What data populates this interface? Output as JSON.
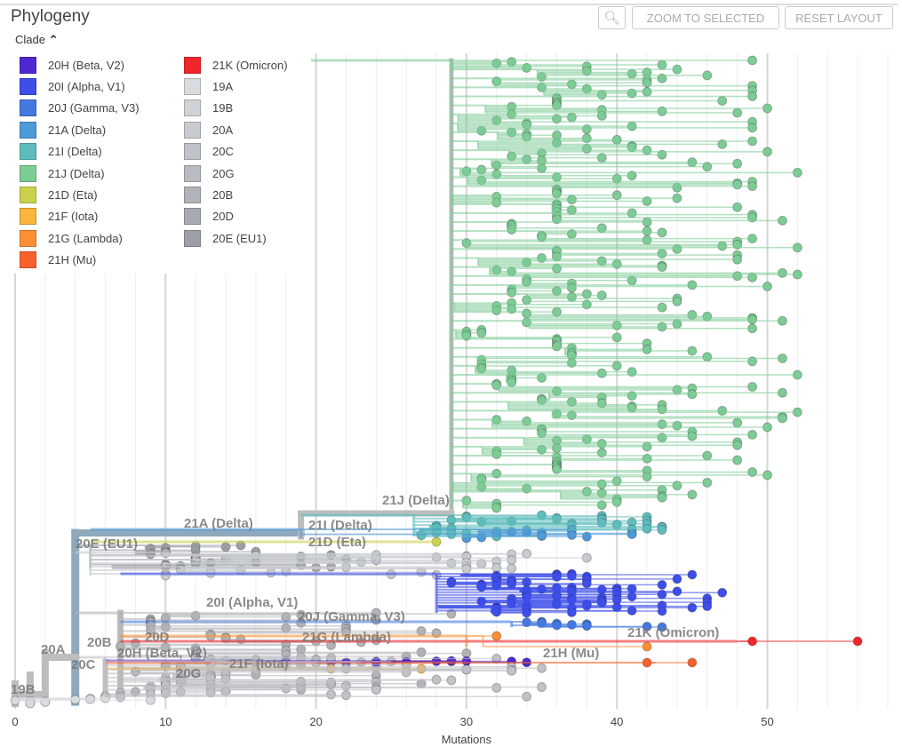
{
  "header": {
    "title": "Phylogeny",
    "zoom_icon": "magnifier-icon",
    "zoom_to_selected": "ZOOM TO SELECTED",
    "reset_layout": "RESET LAYOUT"
  },
  "legend": {
    "title": "Clade",
    "toggle_icon": "chevron-up-icon",
    "items": [
      {
        "label": "20H (Beta, V2)",
        "color": "#4f27d1"
      },
      {
        "label": "20I (Alpha, V1)",
        "color": "#3e4ee8"
      },
      {
        "label": "20J (Gamma, V3)",
        "color": "#4479e0"
      },
      {
        "label": "21A (Delta)",
        "color": "#4e9ad8"
      },
      {
        "label": "21I (Delta)",
        "color": "#5ebcbc"
      },
      {
        "label": "21J (Delta)",
        "color": "#7dcc96"
      },
      {
        "label": "21D (Eta)",
        "color": "#ccd14b"
      },
      {
        "label": "21F (Iota)",
        "color": "#fbb63e"
      },
      {
        "label": "21G (Lambda)",
        "color": "#fb8f34"
      },
      {
        "label": "21H (Mu)",
        "color": "#f9612c"
      },
      {
        "label": "21K (Omicron)",
        "color": "#f0262a"
      },
      {
        "label": "19A",
        "color": "#d8dcdf"
      },
      {
        "label": "19B",
        "color": "#cfd3d6"
      },
      {
        "label": "20A",
        "color": "#c7cbcf"
      },
      {
        "label": "20C",
        "color": "#bfc2c7"
      },
      {
        "label": "20G",
        "color": "#b8bbc0"
      },
      {
        "label": "20B",
        "color": "#b0b3b8"
      },
      {
        "label": "20D",
        "color": "#a7aab0"
      },
      {
        "label": "20E (EU1)",
        "color": "#9c9fa6"
      }
    ]
  },
  "tree": {
    "axis_label": "Mutations",
    "ticks": [
      0,
      10,
      20,
      30,
      40,
      50
    ],
    "xlim": [
      0,
      58
    ],
    "clade_labels": [
      "21J (Delta)",
      "21A (Delta)",
      "21I (Delta)",
      "21D (Eta)",
      "20E (EU1)",
      "20I (Alpha, V1)",
      "20J (Gamma, V3)",
      "20D",
      "20B",
      "21G (Lambda)",
      "21K (Omicron)",
      "20A",
      "20H (Beta, V2)",
      "20G",
      "21F (Iota)",
      "21H (Mu)",
      "20C",
      "19B"
    ],
    "clades": [
      {
        "name": "21J (Delta)",
        "color": "#7dcc96",
        "stem": [
          19,
          29
        ],
        "tips": [
          30,
          52
        ],
        "n": 300
      },
      {
        "name": "21I (Delta)",
        "color": "#5ebcbc",
        "stem": [
          19,
          26.5
        ],
        "tips": [
          27,
          44
        ],
        "n": 40
      },
      {
        "name": "21A (Delta)",
        "color": "#4e9ad8",
        "stem": [
          5,
          19
        ],
        "tips": [
          30,
          42
        ],
        "n": 12
      },
      {
        "name": "21D (Eta)",
        "color": "#ccd14b",
        "stem": [
          5,
          28
        ],
        "tips": [
          28,
          28
        ],
        "n": 1
      },
      {
        "name": "20E (EU1)",
        "color": "#9c9fa6",
        "stem": [
          4,
          5
        ],
        "tips": [
          9,
          24
        ],
        "n": 30
      },
      {
        "name": "20A",
        "color": "#c7cbcf",
        "stem": [
          4,
          5
        ],
        "tips": [
          5,
          40
        ],
        "n": 40
      },
      {
        "name": "20I (Alpha, V1)",
        "color": "#3e4ee8",
        "stem": [
          7,
          28
        ],
        "tips": [
          29,
          47
        ],
        "n": 90
      },
      {
        "name": "20J (Gamma, V3)",
        "color": "#4479e0",
        "stem": [
          7,
          33
        ],
        "tips": [
          33,
          44
        ],
        "n": 10
      },
      {
        "name": "20B",
        "color": "#b0b3b8",
        "stem": [
          4,
          7
        ],
        "tips": [
          7,
          30
        ],
        "n": 80
      },
      {
        "name": "21K (Omicron)",
        "color": "#f0262a",
        "stem": [
          7,
          48
        ],
        "tips": [
          49,
          56
        ],
        "n": 2
      },
      {
        "name": "21G (Lambda)",
        "color": "#fb8f34",
        "stem": [
          7,
          30
        ],
        "tips": [
          32,
          42
        ],
        "n": 2
      },
      {
        "name": "20H (Beta, V2)",
        "color": "#4f27d1",
        "stem": [
          6,
          16
        ],
        "tips": [
          16,
          38
        ],
        "n": 14
      },
      {
        "name": "21H (Mu)",
        "color": "#f9612c",
        "stem": [
          6,
          30
        ],
        "tips": [
          42,
          45
        ],
        "n": 2
      },
      {
        "name": "21F (Iota)",
        "color": "#fbb63e",
        "stem": [
          6,
          20
        ],
        "tips": [
          21,
          27
        ],
        "n": 2
      },
      {
        "name": "20C",
        "color": "#bfc2c7",
        "stem": [
          4,
          6
        ],
        "tips": [
          6,
          37
        ],
        "n": 60
      },
      {
        "name": "19A",
        "color": "#d8dcdf",
        "stem": [
          0,
          0
        ],
        "tips": [
          0,
          10
        ],
        "n": 12
      }
    ]
  }
}
